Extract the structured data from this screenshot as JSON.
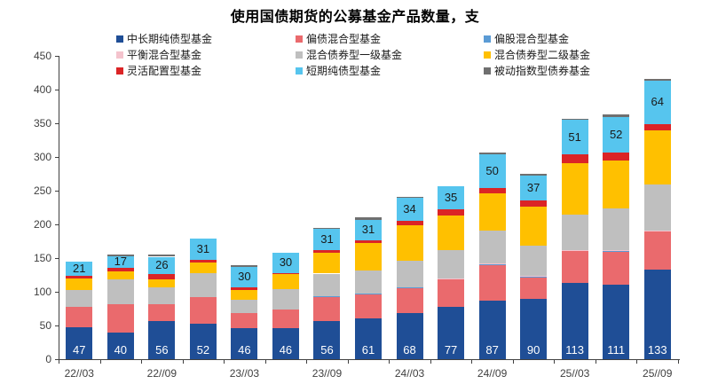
{
  "title": "使用国债期货的公募基金产品数量，支",
  "chart_data": {
    "type": "bar",
    "stacked": true,
    "title": "使用国债期货的公募基金产品数量，支",
    "bar_count": 15,
    "x_tick_labels": [
      "22//03",
      "22//09",
      "23//03",
      "23//09",
      "24//03",
      "24//09",
      "25//03",
      "25//09"
    ],
    "x_tick_label_rule": "labels shown under every other bar starting with the first",
    "ylim": [
      0,
      450
    ],
    "y_ticks": [
      0,
      50,
      100,
      150,
      200,
      250,
      300,
      350,
      400,
      450
    ],
    "grid": false,
    "legend_position": "top",
    "series": [
      {
        "name": "中长期纯债型基金",
        "color": "#1F4E96",
        "values": [
          47,
          40,
          56,
          52,
          46,
          46,
          56,
          61,
          68,
          77,
          87,
          90,
          113,
          111,
          133
        ],
        "show_value_labels": true,
        "label_color": "#FFFFFF",
        "label_position": "bottom"
      },
      {
        "name": "偏债混合型基金",
        "color": "#EA6A6D",
        "values": [
          31,
          42,
          26,
          40,
          22,
          28,
          36,
          35,
          37,
          41,
          52,
          31,
          47,
          48,
          56
        ],
        "show_value_labels": false
      },
      {
        "name": "偏股混合型基金",
        "color": "#5B9BD5",
        "values": [
          0,
          0,
          0,
          0,
          0,
          0,
          1,
          1,
          1,
          1,
          2,
          2,
          1,
          2,
          1
        ],
        "show_value_labels": false
      },
      {
        "name": "平衡混合型基金",
        "color": "#F4C3CD",
        "values": [
          0,
          0,
          0,
          0,
          0,
          0,
          0,
          1,
          1,
          1,
          1,
          1,
          1,
          1,
          1
        ],
        "show_value_labels": false
      },
      {
        "name": "混合债券型一级基金",
        "color": "#BFBFBF",
        "values": [
          25,
          36,
          25,
          36,
          20,
          30,
          34,
          34,
          39,
          42,
          49,
          45,
          52,
          62,
          68
        ],
        "show_value_labels": false
      },
      {
        "name": "混合债券型二级基金",
        "color": "#FFC000",
        "values": [
          17,
          12,
          11,
          15,
          15,
          22,
          31,
          40,
          53,
          51,
          55,
          57,
          77,
          71,
          80
        ],
        "show_value_labels": false
      },
      {
        "name": "灵活配置型基金",
        "color": "#DB2426",
        "values": [
          4,
          6,
          8,
          5,
          4,
          2,
          4,
          4,
          6,
          9,
          8,
          10,
          13,
          12,
          10
        ],
        "show_value_labels": false
      },
      {
        "name": "短期纯债型基金",
        "color": "#56C5EE",
        "values": [
          21,
          17,
          26,
          31,
          30,
          30,
          31,
          31,
          34,
          35,
          50,
          37,
          51,
          52,
          64
        ],
        "show_value_labels": true,
        "label_color": "#1A1A1A",
        "label_position": "center"
      },
      {
        "name": "被动指数型债券基金",
        "color": "#6F6F6F",
        "values": [
          0,
          2,
          3,
          0,
          2,
          0,
          2,
          3,
          2,
          0,
          2,
          2,
          2,
          4,
          3
        ],
        "show_value_labels": false
      }
    ]
  }
}
